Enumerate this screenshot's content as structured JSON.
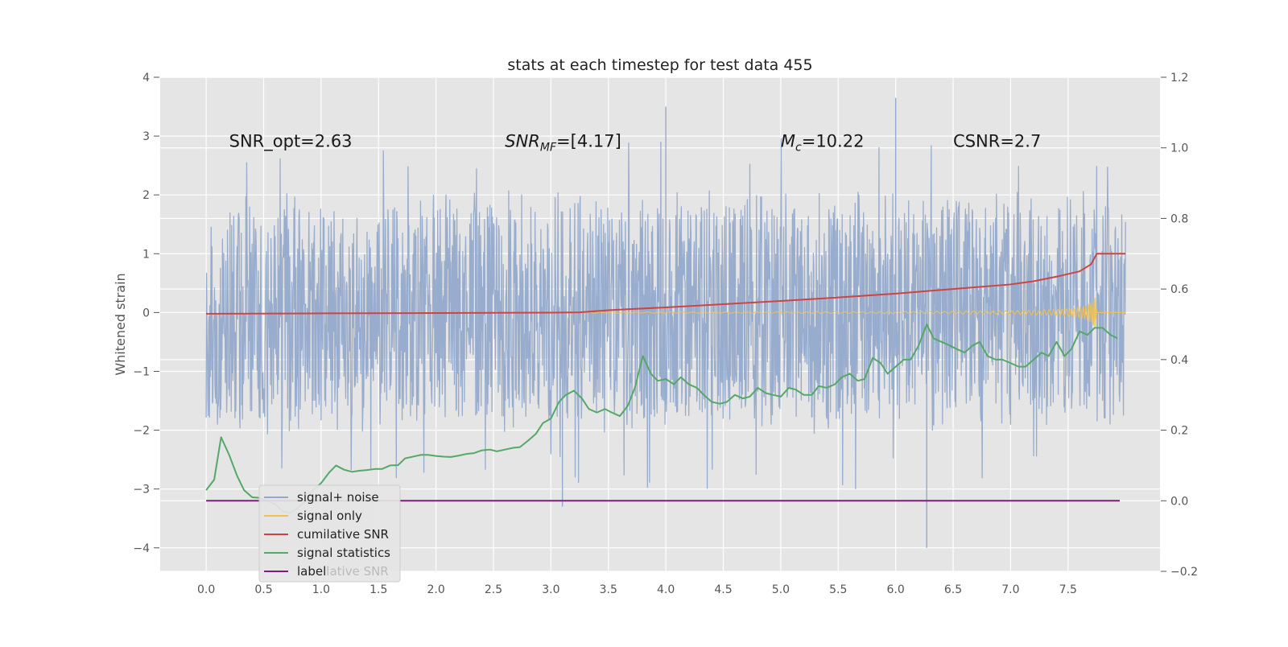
{
  "chart_data": {
    "type": "line",
    "title": "stats at each timestep for test data 455",
    "ylabel": "Whitened strain",
    "xlabel": "",
    "xlim": [
      -0.4,
      8.3
    ],
    "ylim_left": [
      -4.4,
      4
    ],
    "ylim_right": [
      -0.2,
      1.2
    ],
    "x_ticks": [
      "0.0",
      "0.5",
      "1.0",
      "1.5",
      "2.0",
      "2.5",
      "3.0",
      "3.5",
      "4.0",
      "4.5",
      "5.0",
      "5.5",
      "6.0",
      "6.5",
      "7.0",
      "7.5"
    ],
    "y_ticks_left": [
      "4",
      "3",
      "2",
      "1",
      "0",
      "−1",
      "−2",
      "−3",
      "−4"
    ],
    "y_ticks_right": [
      "1.2",
      "1.0",
      "0.8",
      "0.6",
      "0.4",
      "0.2",
      "0.0",
      "−0.2"
    ],
    "grid": true,
    "legend_position": "lower-left",
    "annotations": [
      {
        "text": "SNR_opt=2.63",
        "x": 0.2,
        "y": 2.9
      },
      {
        "text": "SNR_MF=[4.17]",
        "x": 2.6,
        "y": 2.9
      },
      {
        "text": "M_c=10.22",
        "x": 5.0,
        "y": 2.9
      },
      {
        "text": "CSNR=2.7",
        "x": 6.5,
        "y": 2.9
      }
    ],
    "series": [
      {
        "name": "signal+ noise",
        "axis": "left",
        "color": "#94a9cb",
        "x_range": [
          0,
          8.0
        ],
        "style": "noise",
        "envelope_typical": 2.0,
        "peak_max": 3.65,
        "peak_min": -4.0
      },
      {
        "name": "signal only",
        "axis": "left",
        "color": "#f0c050",
        "style": "chirp",
        "x_start": 3.3,
        "x_peak": 7.75,
        "x_end": 8.0,
        "amplitude_peak": 0.4
      },
      {
        "name": "cumilative SNR",
        "axis": "right",
        "color": "#cc4444",
        "x": [
          0.0,
          1.0,
          2.0,
          3.0,
          3.25,
          3.5,
          4.0,
          4.5,
          5.0,
          5.5,
          6.0,
          6.5,
          7.0,
          7.2,
          7.4,
          7.6,
          7.7,
          7.75,
          8.0
        ],
        "y": [
          0.53,
          0.531,
          0.532,
          0.533,
          0.534,
          0.54,
          0.548,
          0.557,
          0.566,
          0.576,
          0.587,
          0.6,
          0.613,
          0.622,
          0.635,
          0.65,
          0.67,
          0.7,
          0.7
        ]
      },
      {
        "name": "signal statistics",
        "axis": "right",
        "color": "#55a868",
        "x": [
          0.0,
          0.07,
          0.13,
          0.2,
          0.27,
          0.33,
          0.4,
          0.47,
          0.53,
          0.6,
          0.67,
          0.73,
          0.8,
          0.87,
          0.93,
          1.0,
          1.07,
          1.13,
          1.2,
          1.27,
          1.33,
          1.4,
          1.47,
          1.53,
          1.6,
          1.67,
          1.73,
          1.8,
          1.87,
          1.93,
          2.0,
          2.07,
          2.13,
          2.2,
          2.27,
          2.33,
          2.4,
          2.47,
          2.53,
          2.6,
          2.67,
          2.73,
          2.8,
          2.87,
          2.93,
          3.0,
          3.07,
          3.13,
          3.2,
          3.27,
          3.33,
          3.4,
          3.47,
          3.53,
          3.6,
          3.67,
          3.73,
          3.8,
          3.87,
          3.93,
          4.0,
          4.07,
          4.13,
          4.2,
          4.27,
          4.33,
          4.4,
          4.47,
          4.53,
          4.6,
          4.67,
          4.73,
          4.8,
          4.87,
          4.93,
          5.0,
          5.07,
          5.13,
          5.2,
          5.27,
          5.33,
          5.4,
          5.47,
          5.53,
          5.6,
          5.67,
          5.73,
          5.8,
          5.87,
          5.93,
          6.0,
          6.07,
          6.13,
          6.2,
          6.27,
          6.33,
          6.4,
          6.47,
          6.53,
          6.6,
          6.67,
          6.73,
          6.8,
          6.87,
          6.93,
          7.0,
          7.07,
          7.13,
          7.2,
          7.27,
          7.33,
          7.4,
          7.47,
          7.53,
          7.6,
          7.67,
          7.73,
          7.8,
          7.87,
          7.93
        ],
        "y": [
          0.03,
          0.06,
          0.18,
          0.13,
          0.07,
          0.03,
          0.01,
          0.008,
          0.0,
          -0.01,
          -0.03,
          -0.035,
          -0.02,
          0.0,
          0.03,
          0.05,
          0.08,
          0.1,
          0.088,
          0.082,
          0.085,
          0.087,
          0.09,
          0.09,
          0.1,
          0.101,
          0.12,
          0.125,
          0.13,
          0.13,
          0.127,
          0.125,
          0.124,
          0.128,
          0.133,
          0.135,
          0.143,
          0.145,
          0.14,
          0.145,
          0.15,
          0.152,
          0.17,
          0.19,
          0.22,
          0.233,
          0.28,
          0.3,
          0.312,
          0.29,
          0.26,
          0.25,
          0.26,
          0.25,
          0.24,
          0.27,
          0.32,
          0.41,
          0.36,
          0.34,
          0.345,
          0.33,
          0.35,
          0.33,
          0.32,
          0.3,
          0.28,
          0.275,
          0.28,
          0.3,
          0.29,
          0.295,
          0.32,
          0.305,
          0.3,
          0.295,
          0.32,
          0.315,
          0.3,
          0.3,
          0.325,
          0.32,
          0.33,
          0.35,
          0.36,
          0.34,
          0.345,
          0.405,
          0.39,
          0.36,
          0.38,
          0.4,
          0.4,
          0.44,
          0.5,
          0.46,
          0.45,
          0.44,
          0.43,
          0.42,
          0.44,
          0.45,
          0.41,
          0.4,
          0.4,
          0.39,
          0.38,
          0.38,
          0.4,
          0.42,
          0.41,
          0.45,
          0.41,
          0.43,
          0.48,
          0.47,
          0.49,
          0.49,
          0.47,
          0.46
        ]
      },
      {
        "name": "label",
        "axis": "right",
        "color": "#7b1f7b",
        "x": [
          0.0,
          7.95
        ],
        "y": [
          0.0,
          0.0
        ]
      }
    ],
    "legend": [
      {
        "label": "signal+ noise",
        "color": "#94a9cb"
      },
      {
        "label": "signal only",
        "color": "#f0c050"
      },
      {
        "label": "cumilative SNR",
        "color": "#cc4444"
      },
      {
        "label": "signal statistics",
        "color": "#55a868"
      },
      {
        "label": "label",
        "color": "#7b1f7b",
        "ghost_suffix": "lative SNR"
      }
    ]
  }
}
